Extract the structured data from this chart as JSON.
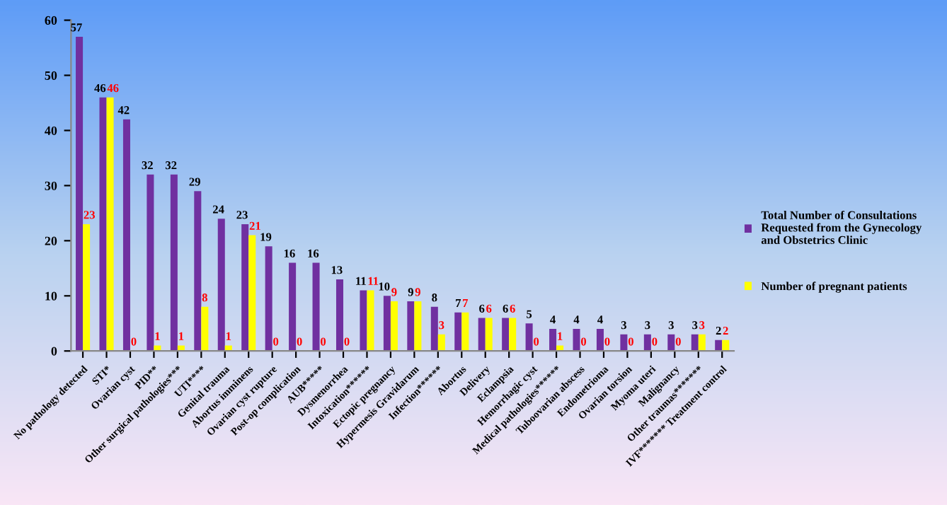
{
  "chart_data": {
    "type": "bar",
    "categories": [
      "No pathology detected",
      "STI*",
      "Ovarian cyst",
      "PID**",
      "Other surgical pathologies***",
      "UTI****",
      "Genital trauma",
      "Abortus imminens",
      "Ovarian cyst rupture",
      "Post-op complication",
      "AUB*****",
      "Dysmenorrhea",
      "Intoxication******",
      "Ectopic pregnancy",
      "Hypermesis Gravidarum",
      "Infection******",
      "Abortus",
      "Delivery",
      "Eclampsia",
      "Hemorrhagic cyst",
      "Medical pathologies******",
      "Tuboovarian abscess",
      "Endometrioma",
      "Ovarian torsion",
      "Myoma uteri",
      "Malignancy",
      "Other traumas*******",
      "IVF******* Treatment control"
    ],
    "series": [
      {
        "name": "Total Number of Consultations Requested from the Gynecology and Obstetrics Clinic",
        "color": "#7030a0",
        "values": [
          57,
          46,
          42,
          32,
          32,
          29,
          24,
          23,
          19,
          16,
          16,
          13,
          11,
          10,
          9,
          8,
          7,
          6,
          6,
          5,
          4,
          4,
          4,
          3,
          3,
          3,
          3,
          2
        ]
      },
      {
        "name": "Number of pregnant patients",
        "color": "#ffff00",
        "values": [
          23,
          46,
          0,
          1,
          1,
          8,
          1,
          21,
          0,
          0,
          0,
          0,
          11,
          9,
          9,
          3,
          7,
          6,
          6,
          0,
          1,
          0,
          0,
          0,
          0,
          0,
          3,
          2
        ]
      }
    ],
    "ylim": [
      0,
      60
    ],
    "yticks": [
      0,
      10,
      20,
      30,
      40,
      50,
      60
    ],
    "grid": false,
    "legend": "right",
    "data_labels": true
  }
}
